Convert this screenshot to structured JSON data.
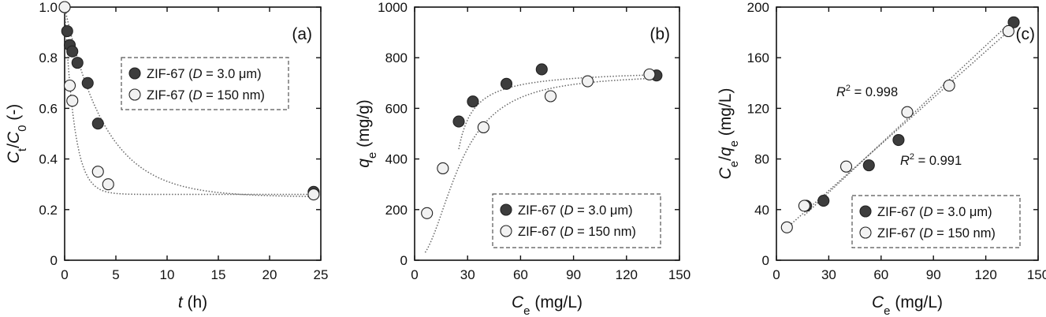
{
  "chart_data": [
    {
      "type": "scatter",
      "panel_label": "(a)",
      "xlabel": {
        "italic": "t",
        "rest": " (h)"
      },
      "ylabel": {
        "c1": "C",
        "s1": "t",
        "slash": "/",
        "c2": "C",
        "s2": "0",
        "rest": " (-)"
      },
      "xlim": [
        0,
        25
      ],
      "ylim": [
        0,
        1.0
      ],
      "xticks": [
        0,
        5,
        10,
        15,
        20,
        25
      ],
      "yticks": [
        0,
        0.2,
        0.4,
        0.6,
        0.8,
        1.0
      ],
      "xtick_labels": [
        "0",
        "5",
        "10",
        "15",
        "20",
        "25"
      ],
      "ytick_labels": [
        "0",
        "0.2",
        "0.4",
        "0.6",
        "0.8",
        "1.0"
      ],
      "grid": false,
      "legend_position": "top-right",
      "series": [
        {
          "legend": {
            "pre": "ZIF-67 (",
            "var": "D",
            "post": " = 3.0 μm)"
          },
          "marker": "filled",
          "x": [
            0,
            0.25,
            0.5,
            0.75,
            1.25,
            2.25,
            3.25,
            24.3
          ],
          "y": [
            1.0,
            0.905,
            0.85,
            0.825,
            0.78,
            0.7,
            0.54,
            0.27
          ]
        },
        {
          "legend": {
            "pre": "ZIF-67 (",
            "var": "D",
            "post": " = 150 nm)"
          },
          "marker": "open",
          "x": [
            0,
            0.5,
            0.75,
            3.25,
            4.25,
            24.3
          ],
          "y": [
            1.0,
            0.69,
            0.63,
            0.35,
            0.3,
            0.26
          ]
        }
      ]
    },
    {
      "type": "scatter",
      "panel_label": "(b)",
      "xlabel": {
        "c1": "C",
        "s1": "e",
        "rest": " (mg/L)"
      },
      "ylabel": {
        "c1": "q",
        "s1": "e",
        "rest": " (mg/g)"
      },
      "xlim": [
        0,
        150
      ],
      "ylim": [
        0,
        1000
      ],
      "xticks": [
        0,
        30,
        60,
        90,
        120,
        150
      ],
      "yticks": [
        0,
        200,
        400,
        600,
        800,
        1000
      ],
      "xtick_labels": [
        "0",
        "30",
        "60",
        "90",
        "120",
        "150"
      ],
      "ytick_labels": [
        "0",
        "200",
        "400",
        "600",
        "800",
        "1000"
      ],
      "grid": false,
      "legend_position": "bottom-right",
      "series": [
        {
          "legend": {
            "pre": "ZIF-67 (",
            "var": "D",
            "post": " = 3.0 μm)"
          },
          "marker": "filled",
          "x": [
            25,
            33,
            52,
            72,
            137
          ],
          "y": [
            548,
            627,
            697,
            754,
            730
          ]
        },
        {
          "legend": {
            "pre": "ZIF-67 (",
            "var": "D",
            "post": " = 150 nm)"
          },
          "marker": "open",
          "x": [
            7,
            16,
            39,
            77,
            98,
            133
          ],
          "y": [
            186,
            363,
            525,
            648,
            707,
            734
          ]
        }
      ]
    },
    {
      "type": "scatter",
      "panel_label": "(c)",
      "xlabel": {
        "c1": "C",
        "s1": "e",
        "rest": " (mg/L)"
      },
      "ylabel": {
        "c1": "C",
        "s1": "e",
        "slash": "/",
        "c2": "q",
        "s2": "e",
        "rest": " (mg/L)"
      },
      "xlim": [
        0,
        150
      ],
      "ylim": [
        0,
        200
      ],
      "xticks": [
        0,
        30,
        60,
        90,
        120,
        150
      ],
      "yticks": [
        0,
        40,
        80,
        120,
        160,
        200
      ],
      "xtick_labels": [
        "0",
        "30",
        "60",
        "90",
        "120",
        "150"
      ],
      "ytick_labels": [
        "0",
        "40",
        "80",
        "120",
        "160",
        "200"
      ],
      "grid": false,
      "legend_position": "bottom-right",
      "annotations": [
        {
          "r": "R",
          "sup": "2",
          "text": " = 0.998"
        },
        {
          "r": "R",
          "sup": "2",
          "text": " = 0.991"
        }
      ],
      "series": [
        {
          "legend": {
            "pre": "ZIF-67 (",
            "var": "D",
            "post": " = 3.0 μm)"
          },
          "marker": "filled",
          "x": [
            17,
            27,
            53,
            70,
            136
          ],
          "y": [
            43,
            47,
            75,
            95,
            188
          ]
        },
        {
          "legend": {
            "pre": "ZIF-67 (",
            "var": "D",
            "post": " = 150 nm)"
          },
          "marker": "open",
          "x": [
            6,
            16,
            40,
            75,
            99,
            133
          ],
          "y": [
            26,
            43,
            74,
            117,
            138,
            181
          ]
        }
      ]
    }
  ],
  "colors": {
    "filled_marker": "#3d3d3d",
    "open_marker": "#f2f2f2",
    "marker_stroke": "#222222",
    "fit_line": "#666666",
    "axis": "#111111"
  }
}
